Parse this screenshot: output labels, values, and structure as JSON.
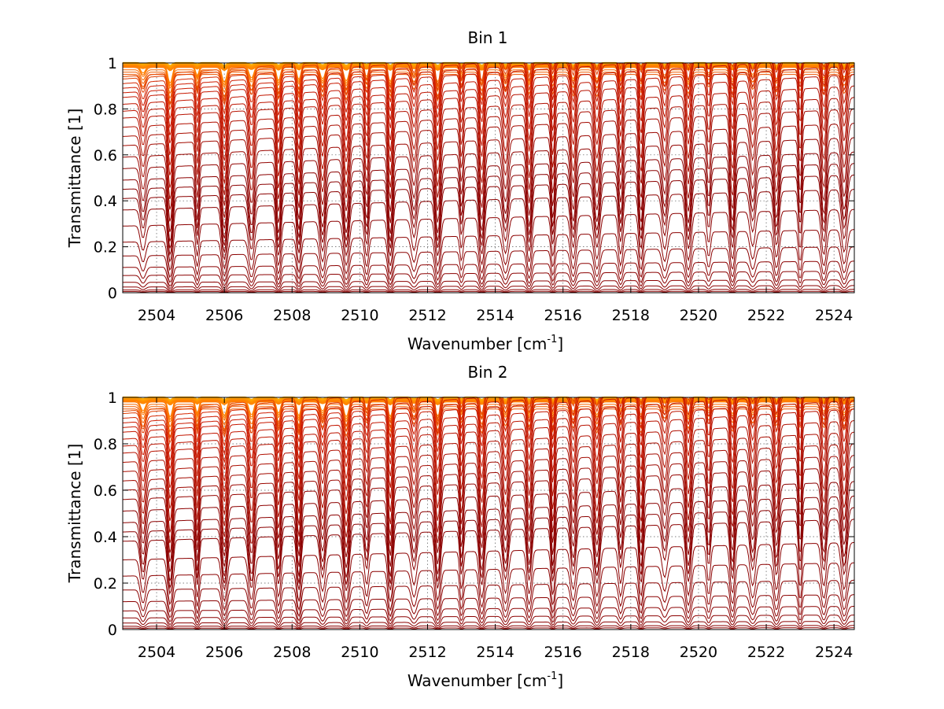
{
  "chart_data": [
    {
      "type": "line",
      "title": "Bin 1",
      "xlabel_main": "Wavenumber [cm",
      "xlabel_sup": "-1",
      "xlabel_end": "]",
      "ylabel": "Transmittance [1]",
      "xlim": [
        2503,
        2524.6
      ],
      "ylim": [
        0,
        1
      ],
      "xticks": [
        2504,
        2506,
        2508,
        2510,
        2512,
        2514,
        2516,
        2518,
        2520,
        2522,
        2524
      ],
      "yticks": [
        0,
        0.2,
        0.4,
        0.6,
        0.8,
        1
      ],
      "grid": true,
      "colors": {
        "dark": "#8b0000",
        "mid": "#d01c00",
        "light": "#ff7a00",
        "lightest": "#ffb000"
      },
      "absorption_lines": [
        2503.6,
        2504.4,
        2505.2,
        2506.0,
        2506.8,
        2507.6,
        2508.2,
        2508.9,
        2509.6,
        2510.2,
        2510.9,
        2511.6,
        2512.3,
        2513.0,
        2513.6,
        2514.3,
        2515.0,
        2515.7,
        2516.3,
        2517.0,
        2517.7,
        2518.3,
        2519.0,
        2519.7,
        2520.3,
        2521.0,
        2521.6,
        2522.3,
        2523.0,
        2523.7,
        2524.3
      ],
      "continuum_levels": [
        1.0,
        1.0,
        1.0,
        1.0,
        1.0,
        1.0,
        1.0,
        1.0,
        0.995,
        0.99,
        0.985,
        0.98,
        0.97,
        0.96,
        0.95,
        0.94,
        0.93,
        0.91,
        0.89,
        0.87,
        0.85,
        0.82,
        0.79,
        0.76,
        0.72,
        0.68,
        0.64,
        0.59,
        0.54,
        0.49,
        0.45,
        0.41,
        0.36,
        0.29,
        0.22,
        0.16,
        0.11,
        0.075,
        0.045,
        0.025,
        0.012,
        0.005,
        0.0
      ]
    },
    {
      "type": "line",
      "title": "Bin 2",
      "xlabel_main": "Wavenumber [cm",
      "xlabel_sup": "-1",
      "xlabel_end": "]",
      "ylabel": "Transmittance [1]",
      "xlim": [
        2503,
        2524.6
      ],
      "ylim": [
        0,
        1
      ],
      "xticks": [
        2504,
        2506,
        2508,
        2510,
        2512,
        2514,
        2516,
        2518,
        2520,
        2522,
        2524
      ],
      "yticks": [
        0,
        0.2,
        0.4,
        0.6,
        0.8,
        1
      ],
      "grid": true,
      "colors": {
        "dark": "#8b0000",
        "mid": "#d01c00",
        "light": "#ff7a00",
        "lightest": "#ffb000"
      },
      "absorption_lines": [
        2503.6,
        2504.4,
        2505.2,
        2506.0,
        2506.8,
        2507.6,
        2508.2,
        2508.9,
        2509.6,
        2510.2,
        2510.9,
        2511.6,
        2512.3,
        2513.0,
        2513.6,
        2514.3,
        2515.0,
        2515.7,
        2516.3,
        2517.0,
        2517.7,
        2518.3,
        2519.0,
        2519.7,
        2520.3,
        2521.0,
        2521.6,
        2522.3,
        2523.0,
        2523.7,
        2524.3
      ],
      "continuum_levels": [
        1.0,
        1.0,
        1.0,
        1.0,
        1.0,
        1.0,
        1.0,
        1.0,
        0.995,
        0.99,
        0.985,
        0.98,
        0.97,
        0.96,
        0.95,
        0.94,
        0.93,
        0.91,
        0.89,
        0.87,
        0.85,
        0.82,
        0.79,
        0.76,
        0.72,
        0.68,
        0.64,
        0.6,
        0.56,
        0.51,
        0.46,
        0.42,
        0.38,
        0.3,
        0.23,
        0.17,
        0.12,
        0.08,
        0.05,
        0.028,
        0.014,
        0.006,
        0.0
      ]
    }
  ]
}
